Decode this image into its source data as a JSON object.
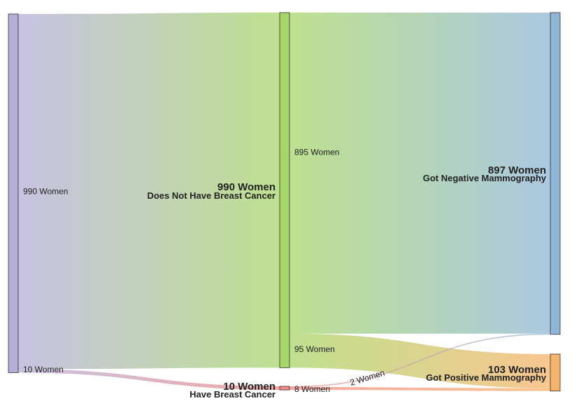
{
  "chart_data": {
    "type": "sankey",
    "nodes": [
      {
        "id": "root",
        "value_label": "",
        "desc": "",
        "color": "#b4aed8"
      },
      {
        "id": "no_cancer",
        "value_label": "990 Women",
        "desc": "Does Not Have Breast Cancer",
        "color": "#a8d66a"
      },
      {
        "id": "cancer",
        "value_label": "10 Women",
        "desc": "Have Breast Cancer",
        "color": "#ef8a86"
      },
      {
        "id": "negative",
        "value_label": "897 Women",
        "desc": "Got Negative Mammography",
        "color": "#8fb6d6"
      },
      {
        "id": "positive",
        "value_label": "103 Women",
        "desc": "Got Positive Mammography",
        "color": "#f6b36a"
      }
    ],
    "links": [
      {
        "source": "root",
        "target": "no_cancer",
        "value": 990,
        "label": "990 Women"
      },
      {
        "source": "root",
        "target": "cancer",
        "value": 10,
        "label": "10 Women"
      },
      {
        "source": "no_cancer",
        "target": "negative",
        "value": 895,
        "label": "895 Women"
      },
      {
        "source": "no_cancer",
        "target": "positive",
        "value": 95,
        "label": "95 Women"
      },
      {
        "source": "cancer",
        "target": "negative",
        "value": 2,
        "label": "2 Women"
      },
      {
        "source": "cancer",
        "target": "positive",
        "value": 8,
        "label": "8 Women"
      }
    ]
  }
}
